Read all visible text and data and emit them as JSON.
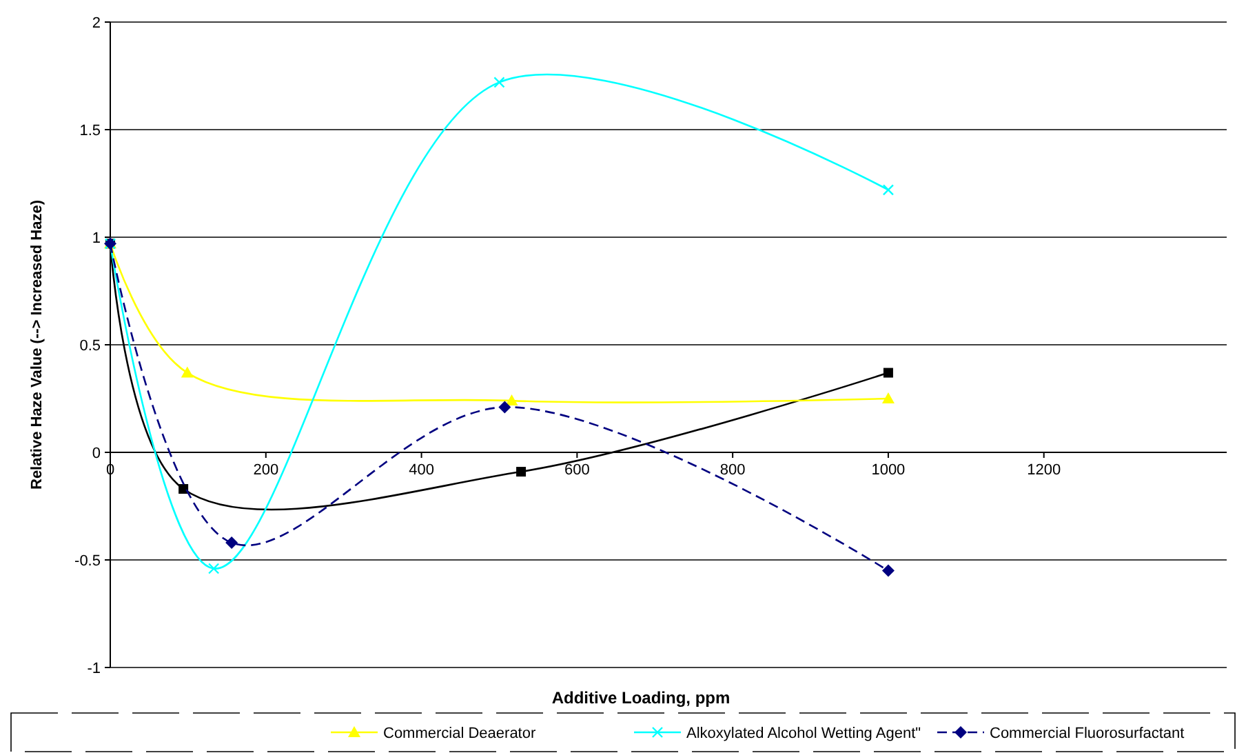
{
  "chart_data": {
    "type": "line",
    "xlabel": "Additive Loading, ppm",
    "ylabel": "Relative Haze Value (--> Increased Haze)",
    "xlim": [
      0,
      1435
    ],
    "xticks": [
      0,
      200,
      400,
      600,
      800,
      1000,
      1200
    ],
    "ylim": [
      -1,
      2
    ],
    "yticks": [
      -1,
      -0.5,
      0,
      0.5,
      1,
      1.5,
      2
    ],
    "grid": "y",
    "legend": "bottom",
    "series": [
      {
        "color": "#000000",
        "marker": "square",
        "line_style": "solid",
        "x": [
          0,
          94,
          528,
          1000
        ],
        "values": [
          0.97,
          -0.17,
          -0.09,
          0.37
        ]
      },
      {
        "name": "Commercial Deaerator",
        "color": "#ffff00",
        "marker": "triangle",
        "line_style": "solid",
        "x": [
          0,
          99,
          516,
          1000
        ],
        "values": [
          0.97,
          0.37,
          0.24,
          0.25
        ]
      },
      {
        "name": "Alkoxylated Alcohol Wetting Agent\"",
        "color": "#00ffff",
        "marker": "cross",
        "line_style": "solid",
        "x": [
          0,
          133,
          500,
          1000
        ],
        "values": [
          0.97,
          -0.54,
          1.72,
          1.22
        ]
      },
      {
        "name": "Commercial Fluorosurfactant",
        "color": "#000080",
        "marker": "diamond",
        "line_style": "dashed",
        "x": [
          0,
          156,
          507,
          1000
        ],
        "values": [
          0.97,
          -0.42,
          0.21,
          -0.55
        ]
      }
    ]
  }
}
